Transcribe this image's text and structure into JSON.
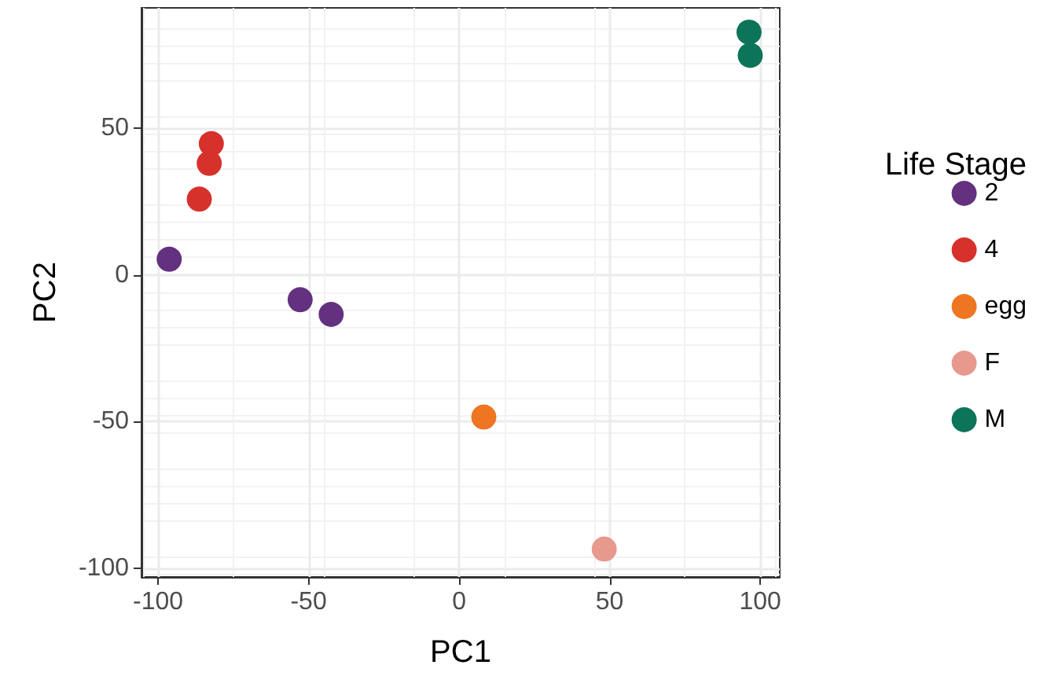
{
  "chart_data": {
    "type": "scatter",
    "xlabel": "PC1",
    "ylabel": "PC2",
    "legend_title": "Life Stage",
    "xlim": [
      -105.5,
      106.5
    ],
    "xticks": [
      -100,
      -50,
      0,
      50,
      100
    ],
    "ylim": [
      -103,
      91
    ],
    "yticks": [
      -100,
      -50,
      0,
      50
    ],
    "grid": true,
    "legend": "right",
    "marker": "circle",
    "series": [
      {
        "name": "2",
        "color": "#63317f",
        "x": [
          -96.3,
          -52.8,
          -42.5
        ],
        "values": [
          5.3,
          -8.5,
          -13.5
        ]
      },
      {
        "name": "4",
        "color": "#d7312c",
        "x": [
          -82.3,
          -83,
          -86.3
        ],
        "values": [
          44.7,
          38,
          25.8
        ]
      },
      {
        "name": "egg",
        "color": "#ee7623",
        "x": [
          8.2
        ],
        "values": [
          -48.5
        ]
      },
      {
        "name": "F",
        "color": "#e8998d",
        "x": [
          48.2
        ],
        "values": [
          -93.5
        ]
      },
      {
        "name": "M",
        "color": "#0b7459",
        "x": [
          96.3,
          96.7
        ],
        "values": [
          82.7,
          74.8
        ]
      }
    ]
  }
}
